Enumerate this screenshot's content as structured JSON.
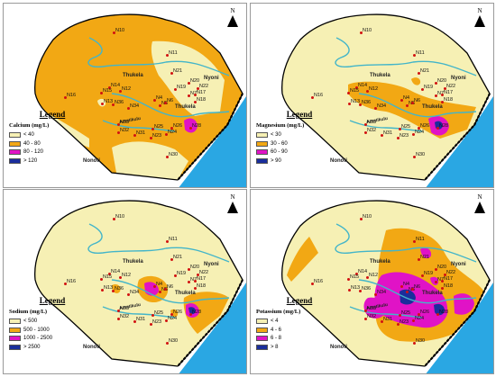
{
  "north_label": "N",
  "legend_title": "Legend",
  "places": {
    "thukela": "Thukela",
    "nyoni": "Nyoni",
    "nonoti": "Nonoti",
    "amatikulu": "Amatikulu"
  },
  "sites": [
    "N10",
    "N11",
    "N16",
    "N21",
    "N20",
    "N22",
    "N19",
    "N14",
    "N12",
    "N15",
    "N13",
    "N36",
    "N34",
    "N4",
    "N5",
    "N6",
    "N7",
    "N17",
    "N18",
    "N33",
    "N32",
    "N31",
    "N25",
    "N26",
    "N28",
    "N24",
    "N23",
    "N30"
  ],
  "panels": [
    {
      "parameter": "Calcium (mg/L)",
      "classes": [
        {
          "label": "< 40",
          "color": "#f6f0b4"
        },
        {
          "label": "40 - 80",
          "color": "#f2a814"
        },
        {
          "label": "80 - 120",
          "color": "#e013c6"
        },
        {
          "label": "> 120",
          "color": "#1a2e9c"
        }
      ]
    },
    {
      "parameter": "Magnesium (mg/L)",
      "classes": [
        {
          "label": "< 30",
          "color": "#f6f0b4"
        },
        {
          "label": "30 - 60",
          "color": "#f2a814"
        },
        {
          "label": "60 - 90",
          "color": "#e013c6"
        },
        {
          "label": "> 90",
          "color": "#1a2e9c"
        }
      ]
    },
    {
      "parameter": "Sodium (mg/L)",
      "classes": [
        {
          "label": "< 500",
          "color": "#f6f0b4"
        },
        {
          "label": "500 - 1000",
          "color": "#f2a814"
        },
        {
          "label": "1000 - 2500",
          "color": "#e013c6"
        },
        {
          "label": "> 2500",
          "color": "#1a2e9c"
        }
      ]
    },
    {
      "parameter": "Potassium (mg/L)",
      "classes": [
        {
          "label": "< 4",
          "color": "#f6f0b4"
        },
        {
          "label": "4 - 6",
          "color": "#f2a814"
        },
        {
          "label": "6 - 8",
          "color": "#e013c6"
        },
        {
          "label": "> 8",
          "color": "#1a2e9c"
        }
      ]
    }
  ],
  "colors": {
    "sea": "#2aa7e3",
    "river": "#43b5c9",
    "site": "#d11111",
    "outline": "#000000"
  }
}
